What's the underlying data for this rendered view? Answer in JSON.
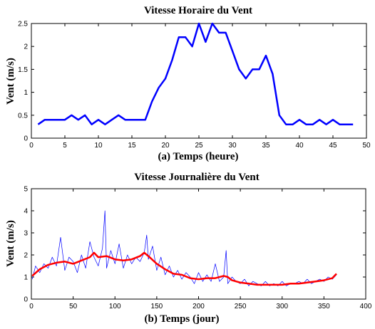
{
  "chart_data": [
    {
      "type": "line",
      "title": "Vitesse Horaire du Vent",
      "xlabel": "(a) Temps (heure)",
      "ylabel": "Vent (m/s)",
      "xlim": [
        0,
        50
      ],
      "ylim": [
        0,
        2.5
      ],
      "xticks": [
        0,
        5,
        10,
        15,
        20,
        25,
        30,
        35,
        40,
        45,
        50
      ],
      "yticks": [
        0,
        0.5,
        1,
        1.5,
        2,
        2.5
      ],
      "ytick_labels": [
        "0",
        "0.5",
        "1",
        "1.5",
        "2",
        "2.5"
      ],
      "grid": false,
      "series": [
        {
          "color": "#0000ff",
          "x": [
            1,
            2,
            3,
            4,
            5,
            6,
            7,
            8,
            9,
            10,
            11,
            12,
            13,
            14,
            15,
            16,
            17,
            18,
            19,
            20,
            21,
            22,
            23,
            24,
            25,
            26,
            27,
            28,
            29,
            30,
            31,
            32,
            33,
            34,
            35,
            36,
            37,
            38,
            39,
            40,
            41,
            42,
            43,
            44,
            45,
            46,
            47,
            48
          ],
          "y": [
            0.3,
            0.4,
            0.4,
            0.4,
            0.4,
            0.5,
            0.4,
            0.5,
            0.3,
            0.4,
            0.3,
            0.4,
            0.5,
            0.4,
            0.4,
            0.4,
            0.4,
            0.8,
            1.1,
            1.3,
            1.7,
            2.2,
            2.2,
            2.0,
            2.5,
            2.1,
            2.5,
            2.3,
            2.3,
            1.9,
            1.5,
            1.3,
            1.5,
            1.5,
            1.8,
            1.4,
            0.5,
            0.3,
            0.3,
            0.4,
            0.3,
            0.3,
            0.4,
            0.3,
            0.4,
            0.3,
            0.3,
            0.3
          ]
        }
      ]
    },
    {
      "type": "line",
      "title": "Vitesse Journalière du Vent",
      "xlabel": "(b) Temps (jour)",
      "ylabel": "Vent (m/s)",
      "xlim": [
        0,
        400
      ],
      "ylim": [
        0,
        5
      ],
      "xticks": [
        0,
        50,
        100,
        150,
        200,
        250,
        300,
        350,
        400
      ],
      "yticks": [
        0,
        1,
        2,
        3,
        4,
        5
      ],
      "ytick_labels": [
        "0",
        "1",
        "2",
        "3",
        "4",
        "5"
      ],
      "grid": false,
      "series": [
        {
          "color": "#0000ff",
          "x": [
            1,
            5,
            10,
            15,
            20,
            25,
            30,
            35,
            40,
            45,
            50,
            55,
            60,
            65,
            70,
            75,
            80,
            85,
            88,
            90,
            95,
            100,
            105,
            110,
            115,
            120,
            125,
            130,
            135,
            138,
            140,
            145,
            150,
            155,
            160,
            165,
            170,
            175,
            180,
            185,
            190,
            195,
            200,
            205,
            210,
            215,
            220,
            225,
            230,
            233,
            235,
            240,
            245,
            250,
            255,
            260,
            265,
            270,
            275,
            280,
            285,
            290,
            295,
            300,
            305,
            310,
            315,
            320,
            325,
            330,
            335,
            340,
            345,
            350,
            355,
            360,
            365
          ],
          "y": [
            0.9,
            1.5,
            1.2,
            1.6,
            1.4,
            1.9,
            1.5,
            2.8,
            1.3,
            1.9,
            1.7,
            1.2,
            2.0,
            1.4,
            2.6,
            1.9,
            1.5,
            2.3,
            4.0,
            1.4,
            2.2,
            1.6,
            2.5,
            1.4,
            2.0,
            1.6,
            1.9,
            1.7,
            2.1,
            2.9,
            1.8,
            2.4,
            1.3,
            1.9,
            1.1,
            1.5,
            1.0,
            1.3,
            0.9,
            1.2,
            1.0,
            0.7,
            1.2,
            0.8,
            1.1,
            0.8,
            1.6,
            0.8,
            1.0,
            2.2,
            0.7,
            1.0,
            0.8,
            0.7,
            0.9,
            0.6,
            0.8,
            0.7,
            0.6,
            0.8,
            0.6,
            0.7,
            0.6,
            0.8,
            0.6,
            0.7,
            0.7,
            0.8,
            0.7,
            0.9,
            0.7,
            0.8,
            0.9,
            0.8,
            1.0,
            0.9,
            1.1
          ]
        },
        {
          "color": "#ff0000",
          "x": [
            1,
            10,
            20,
            30,
            40,
            50,
            60,
            70,
            75,
            80,
            90,
            100,
            110,
            120,
            130,
            135,
            140,
            150,
            160,
            170,
            180,
            190,
            200,
            210,
            220,
            230,
            235,
            240,
            250,
            260,
            270,
            280,
            290,
            300,
            310,
            320,
            330,
            340,
            350,
            360,
            365
          ],
          "y": [
            1.05,
            1.35,
            1.55,
            1.65,
            1.7,
            1.6,
            1.75,
            1.9,
            2.1,
            1.9,
            1.95,
            1.8,
            1.75,
            1.8,
            1.95,
            2.1,
            1.95,
            1.6,
            1.35,
            1.15,
            1.1,
            0.95,
            0.9,
            0.95,
            0.95,
            1.05,
            1.0,
            0.85,
            0.75,
            0.7,
            0.65,
            0.65,
            0.65,
            0.65,
            0.7,
            0.7,
            0.75,
            0.8,
            0.85,
            0.95,
            1.15
          ]
        }
      ]
    }
  ]
}
